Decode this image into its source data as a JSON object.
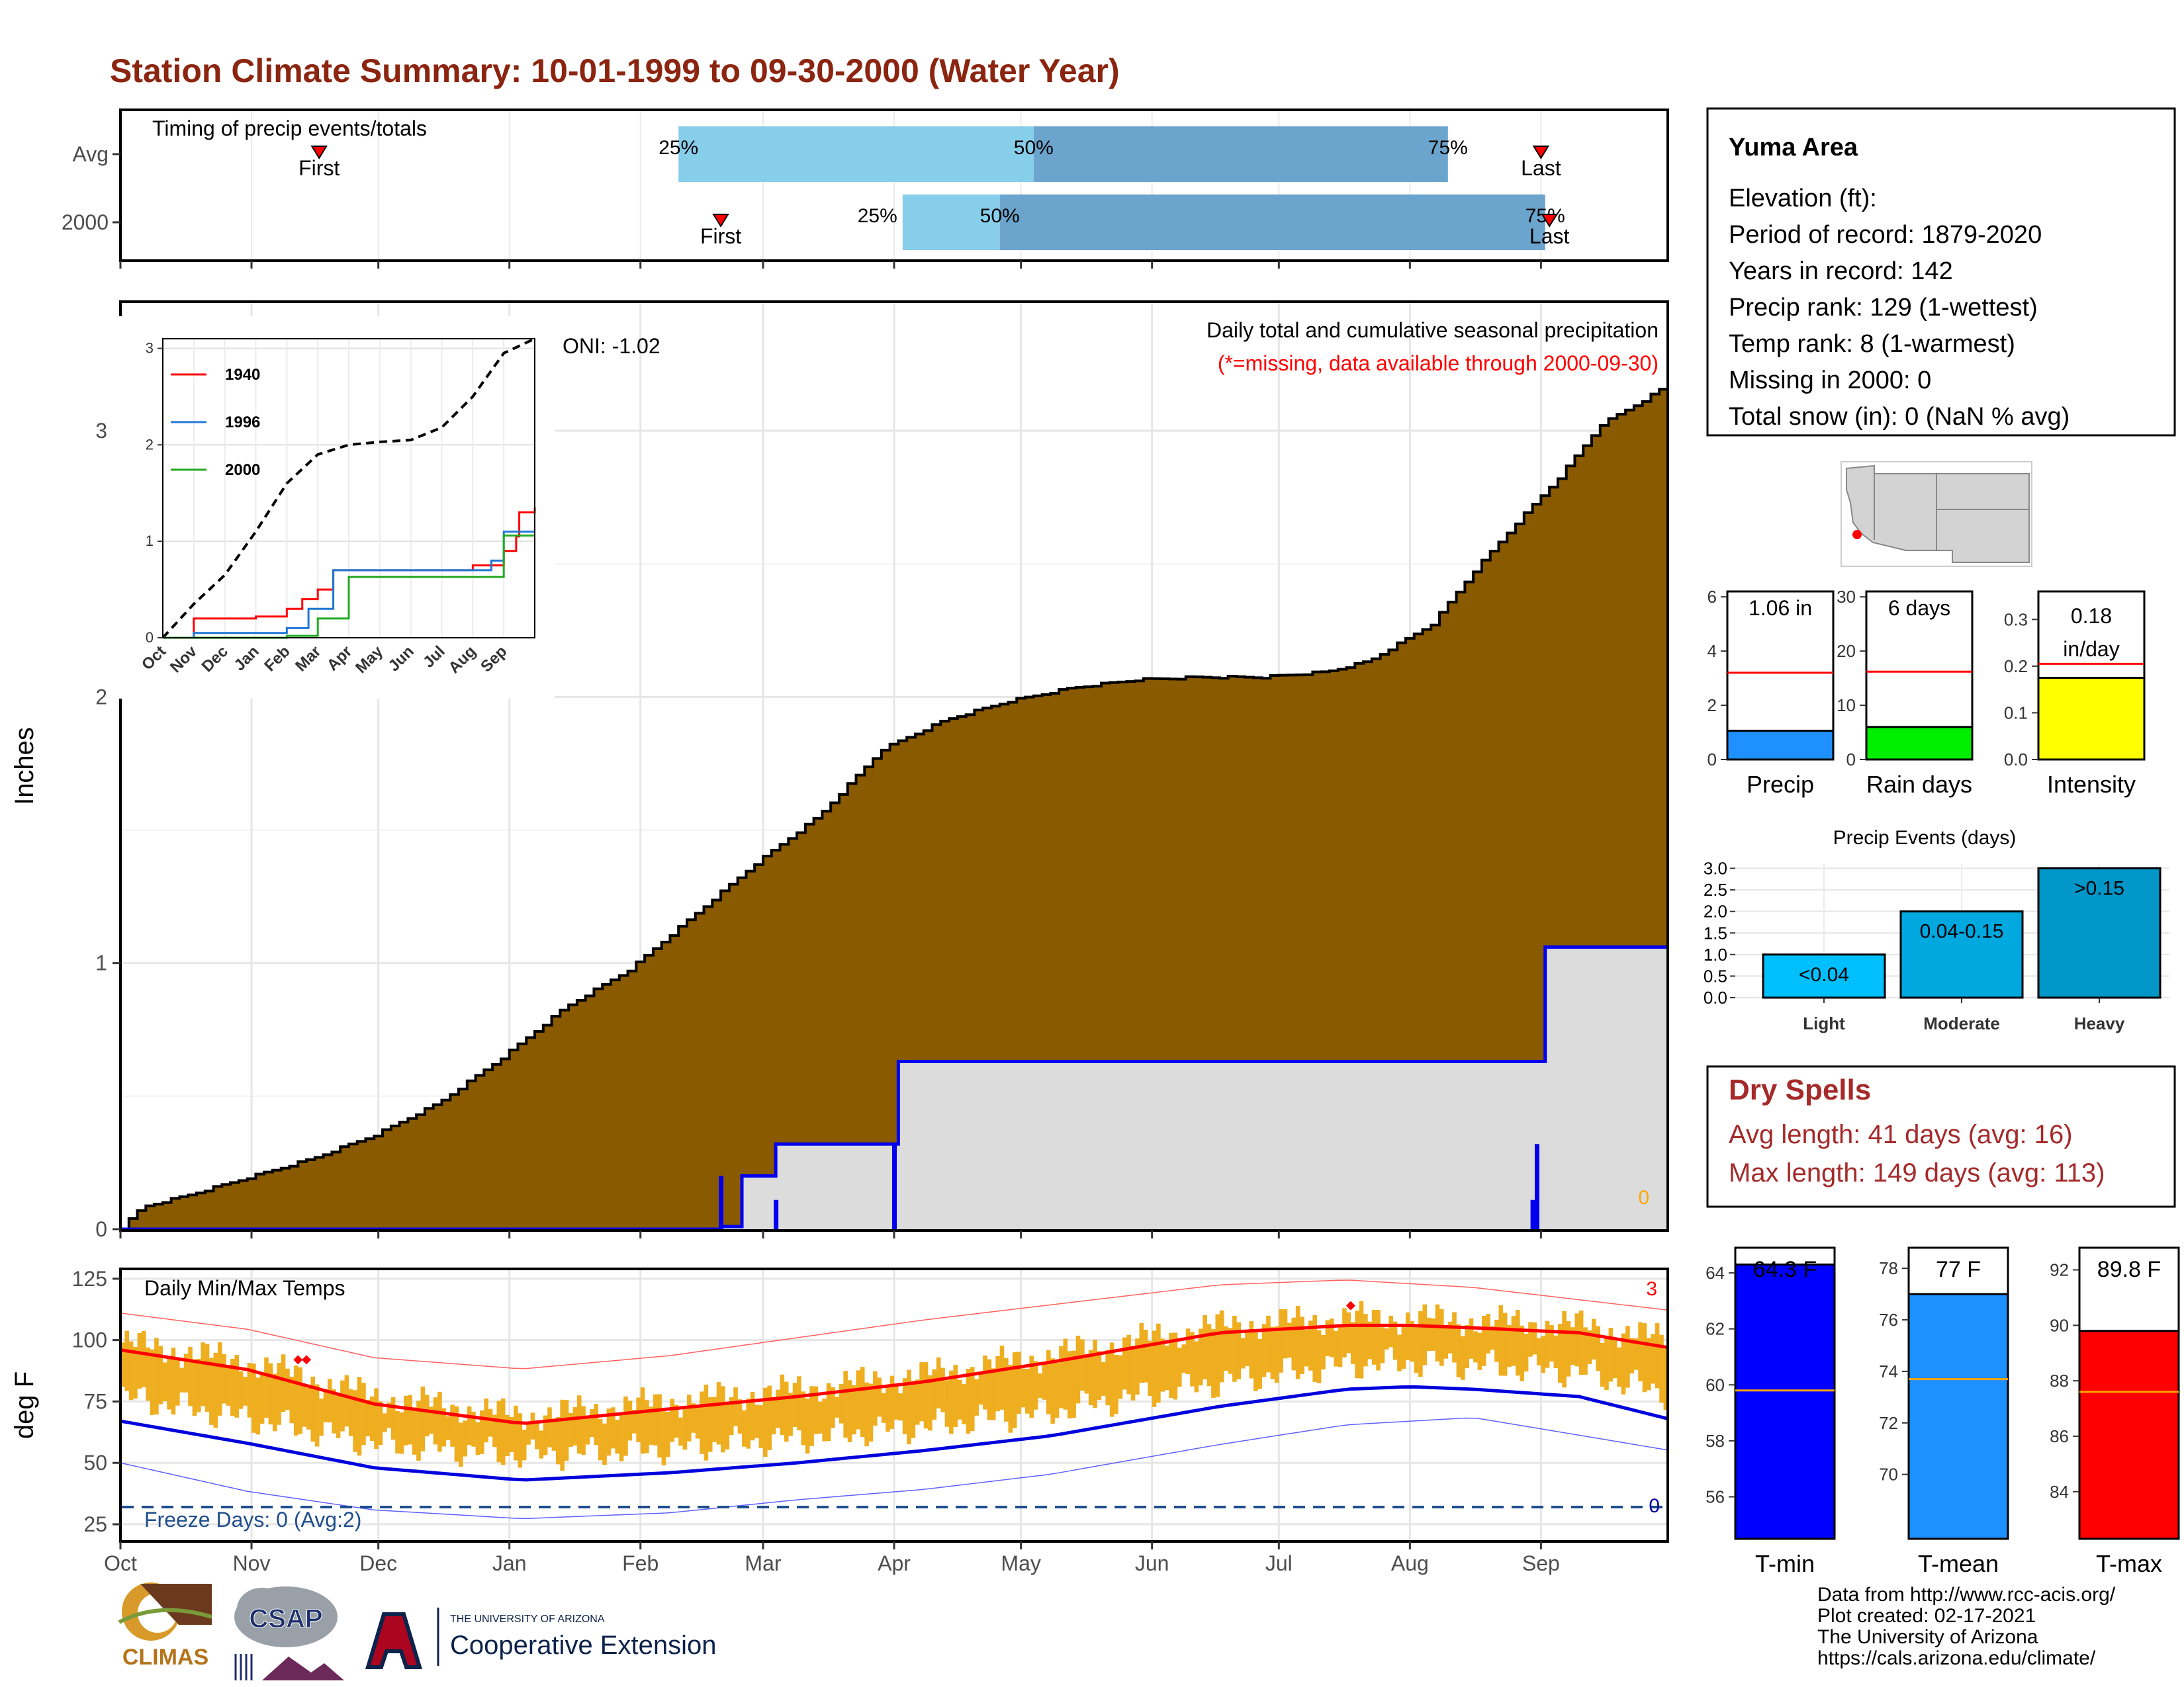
{
  "title": "Station Climate Summary: 10-01-1999 to 09-30-2000 (Water Year)",
  "colors": {
    "title": "#8b2510",
    "cum_fill": "#8a5a00",
    "grey_fill": "#dcdcdc",
    "blue": "#0000ee",
    "light_q": "#87ceeb",
    "dark_q": "#6ba4cc",
    "tmax_avg": "#ff0000",
    "tmin_avg": "#0000dd",
    "bars": "#eeae20",
    "freeze": "#1f4e8c",
    "dry": "#a52a2a"
  },
  "timing": {
    "label": "Timing of precip events/totals",
    "rows": [
      {
        "name": "Avg",
        "first_label": "First",
        "last_label": "Last",
        "q25": "25%",
        "q50": "50%",
        "q75": "75%"
      },
      {
        "name": "2000",
        "first_label": "First",
        "last_label": "Last",
        "q25": "25%",
        "q50": "50%",
        "q75": "75%"
      }
    ]
  },
  "main_chart": {
    "ylabel": "Inches",
    "caption": "Daily total and cumulative seasonal precipitation",
    "missing_note": "(*=missing, data available through 2000-09-30)",
    "oni": "ONI: -1.02",
    "missing_count": "0"
  },
  "inset": {
    "series": [
      {
        "name": "1940"
      },
      {
        "name": "1996"
      },
      {
        "name": "2000"
      }
    ],
    "x_ticks": [
      "Oct",
      "Nov",
      "Dec",
      "Jan",
      "Feb",
      "Mar",
      "Apr",
      "May",
      "Jun",
      "Jul",
      "Aug",
      "Sep"
    ],
    "y_ticks": [
      "0",
      "1",
      "2",
      "3"
    ]
  },
  "temps": {
    "label": "Daily Min/Max Temps",
    "ylabel": "deg F",
    "freeze_label": "Freeze Days: 0 (Avg:2)",
    "record_count": "3",
    "freeze_count": "0"
  },
  "station": {
    "name": "Yuma Area",
    "lines": [
      "Elevation (ft):",
      "Period of record: 1879-2020",
      "Years in record: 142",
      "Precip rank: 129 (1-wettest)",
      "Temp rank: 8 (1-warmest)",
      "Missing in 2000: 0",
      "Total snow (in): 0 (NaN % avg)"
    ]
  },
  "summary_bars": [
    {
      "label": "Precip",
      "value_text": "1.06 in",
      "value": 1.06,
      "avg": 3.2,
      "ymax": 6.2,
      "ticks": [
        "0",
        "2",
        "4",
        "6"
      ],
      "color": "#1e90ff"
    },
    {
      "label": "Rain days",
      "value_text": "6 days",
      "value": 6,
      "avg": 16.2,
      "ymax": 31,
      "ticks": [
        "0",
        "10",
        "20",
        "30"
      ],
      "color": "#00ee00"
    },
    {
      "label": "Intensity",
      "value_text": "0.18 in/day",
      "value_line1": "0.18",
      "value_line2": "in/day",
      "value": 0.175,
      "avg": 0.205,
      "ymax": 0.36,
      "ticks": [
        "0.0",
        "0.1",
        "0.2",
        "0.3"
      ],
      "color": "#ffff00"
    }
  ],
  "precip_events": {
    "title": "Precip Events (days)",
    "ticks": [
      "0.0",
      "0.5",
      "1.0",
      "1.5",
      "2.0",
      "2.5",
      "3.0"
    ],
    "bars": [
      {
        "category": "Light",
        "label": "<0.04",
        "value": 1,
        "color": "#00bfff"
      },
      {
        "category": "Moderate",
        "label": "0.04-0.15",
        "value": 2,
        "color": "#00a8e0"
      },
      {
        "category": "Heavy",
        "label": ">0.15",
        "value": 3,
        "color": "#0096c8"
      }
    ]
  },
  "dry_spells": {
    "title": "Dry Spells",
    "avg_line": "Avg length: 41 days (avg: 16)",
    "max_line": "Max length: 149 days (avg: 113)"
  },
  "temp_bars": [
    {
      "label": "T-min",
      "value_text": "64.3 F",
      "value": 64.3,
      "avg": 59.8,
      "ylim": [
        54.5,
        64.9
      ],
      "ticks": [
        "56",
        "58",
        "60",
        "62",
        "64"
      ],
      "color": "#0000ff"
    },
    {
      "label": "T-mean",
      "value_text": "77 F",
      "value": 77.0,
      "avg": 73.7,
      "ylim": [
        67.5,
        78.8
      ],
      "ticks": [
        "70",
        "72",
        "74",
        "76",
        "78"
      ],
      "color": "#1e90ff"
    },
    {
      "label": "T-max",
      "value_text": "89.8 F",
      "value": 89.8,
      "avg": 87.6,
      "ylim": [
        82.3,
        92.8
      ],
      "ticks": [
        "84",
        "86",
        "88",
        "90",
        "92"
      ],
      "color": "#ff0000"
    }
  ],
  "credits": [
    "Data from http://www.rcc-acis.org/",
    "Plot created: 02-17-2021",
    "The University of Arizona",
    "https://cals.arizona.edu/climate/"
  ],
  "logos": {
    "climas": "CLIMAS",
    "csap": "CSAP",
    "ua_small": "THE UNIVERSITY OF ARIZONA",
    "coop": "Cooperative Extension"
  },
  "chart_data": [
    {
      "type": "area",
      "title": "Daily total and cumulative seasonal precipitation",
      "ylabel": "Inches",
      "x_ticks": [
        "Oct",
        "Nov",
        "Dec",
        "Jan",
        "Feb",
        "Mar",
        "Apr",
        "May",
        "Jun",
        "Jul",
        "Aug",
        "Sep"
      ],
      "ylim": [
        0,
        3.4
      ],
      "y_ticks": [
        0,
        1,
        2,
        3
      ],
      "avg_cumulative": {
        "day": [
          0,
          5,
          15,
          30,
          45,
          60,
          75,
          90,
          105,
          120,
          135,
          150,
          165,
          180,
          195,
          210,
          225,
          240,
          255,
          270,
          285,
          295,
          310,
          320,
          330,
          340,
          350,
          360,
          366
        ],
        "inches": [
          0,
          0.08,
          0.12,
          0.19,
          0.26,
          0.35,
          0.47,
          0.64,
          0.83,
          0.97,
          1.17,
          1.37,
          1.55,
          1.8,
          1.91,
          1.98,
          2.03,
          2.06,
          2.07,
          2.07,
          2.09,
          2.13,
          2.27,
          2.47,
          2.65,
          2.82,
          3.02,
          3.11,
          3.17
        ]
      },
      "year_2000_cumulative": {
        "day": [
          0,
          142,
          147,
          155,
          182,
          184,
          334,
          337,
          366
        ],
        "inches": [
          0,
          0.01,
          0.2,
          0.32,
          0.32,
          0.63,
          0.63,
          1.06,
          1.06
        ]
      },
      "daily_bars": [
        {
          "day": 142,
          "inches": 0.2
        },
        {
          "day": 155,
          "inches": 0.11
        },
        {
          "day": 183,
          "inches": 0.32
        },
        {
          "day": 334,
          "inches": 0.11
        },
        {
          "day": 335,
          "inches": 0.32
        }
      ]
    },
    {
      "type": "line",
      "title": "",
      "x_ticks": [
        "Oct",
        "Nov",
        "Dec",
        "Jan",
        "Feb",
        "Mar",
        "Apr",
        "May",
        "Jun",
        "Jul",
        "Aug",
        "Sep"
      ],
      "ylim": [
        0,
        3.1
      ],
      "y_ticks": [
        0,
        1,
        2,
        3
      ],
      "series": [
        {
          "name": "",
          "style": "dashed",
          "month_index": [
            0,
            1,
            2,
            3,
            4,
            5,
            6,
            7,
            8,
            9,
            10,
            11,
            12
          ],
          "values": [
            0,
            0.35,
            0.65,
            1.1,
            1.6,
            1.9,
            2.0,
            2.03,
            2.05,
            2.18,
            2.5,
            2.95,
            3.1
          ]
        },
        {
          "name": "1940",
          "month_index": [
            0,
            1,
            3,
            4,
            4.5,
            5,
            5.5,
            9,
            10,
            11,
            11.4,
            11.5,
            12
          ],
          "values": [
            0,
            0.2,
            0.22,
            0.3,
            0.4,
            0.5,
            0.7,
            0.7,
            0.75,
            0.9,
            1.05,
            1.3,
            1.35
          ]
        },
        {
          "name": "1996",
          "month_index": [
            0,
            1,
            4,
            4.7,
            5.5,
            10,
            10.6,
            11,
            12
          ],
          "values": [
            0,
            0.05,
            0.1,
            0.3,
            0.7,
            0.7,
            0.8,
            1.1,
            1.1
          ]
        },
        {
          "name": "2000",
          "month_index": [
            0,
            1,
            4,
            5,
            6,
            10,
            11,
            12
          ],
          "values": [
            0,
            0.0,
            0.02,
            0.2,
            0.63,
            0.63,
            1.06,
            1.06
          ]
        }
      ]
    },
    {
      "type": "line",
      "title": "Daily Min/Max Temps",
      "ylabel": "deg F",
      "x_ticks": [
        "Oct",
        "Nov",
        "Dec",
        "Jan",
        "Feb",
        "Mar",
        "Apr",
        "May",
        "Jun",
        "Jul",
        "Aug",
        "Sep"
      ],
      "ylim": [
        18,
        129
      ],
      "y_ticks": [
        25,
        50,
        75,
        100,
        125
      ],
      "series": [
        {
          "name": "",
          "kind": "avg_max",
          "day": [
            0,
            30,
            60,
            95,
            130,
            160,
            190,
            220,
            260,
            290,
            305,
            320,
            345,
            366
          ],
          "values": [
            96,
            88,
            74,
            66,
            72,
            77,
            83,
            91,
            103,
            106,
            106,
            105,
            103,
            97
          ]
        },
        {
          "name": "",
          "kind": "avg_min",
          "day": [
            0,
            30,
            60,
            95,
            130,
            160,
            190,
            220,
            260,
            290,
            305,
            320,
            345,
            366
          ],
          "values": [
            67,
            58,
            48,
            43,
            46,
            50,
            55,
            61,
            73,
            80,
            81,
            80,
            77,
            68
          ]
        },
        {
          "name": "",
          "kind": "record_max",
          "day": [
            0,
            30,
            60,
            95,
            130,
            160,
            190,
            220,
            260,
            290,
            320,
            366
          ],
          "values": [
            111,
            104,
            92,
            87,
            92,
            99,
            106,
            112,
            120,
            122,
            119,
            110
          ]
        },
        {
          "name": "",
          "kind": "record_min",
          "day": [
            0,
            30,
            60,
            95,
            130,
            160,
            190,
            220,
            260,
            290,
            320,
            366
          ],
          "values": [
            50,
            38,
            30,
            26,
            28,
            33,
            37,
            43,
            55,
            63,
            66,
            53
          ]
        }
      ],
      "freeze_line": 32,
      "record_highs": [
        {
          "day": 42,
          "value": 92
        },
        {
          "day": 44,
          "value": 92
        },
        {
          "day": 291,
          "value": 114
        }
      ]
    },
    {
      "type": "bar",
      "title": "Precip Events (days)",
      "categories": [
        "Light",
        "Moderate",
        "Heavy"
      ],
      "values": [
        1,
        2,
        3
      ],
      "ylim": [
        0,
        3.1
      ]
    },
    {
      "type": "bar",
      "categories": [
        "Precip",
        "Rain days",
        "Intensity"
      ],
      "values": [
        1.06,
        6,
        0.18
      ]
    },
    {
      "type": "bar",
      "categories": [
        "T-min",
        "T-mean",
        "T-max"
      ],
      "values": [
        64.3,
        77.0,
        89.8
      ]
    }
  ]
}
